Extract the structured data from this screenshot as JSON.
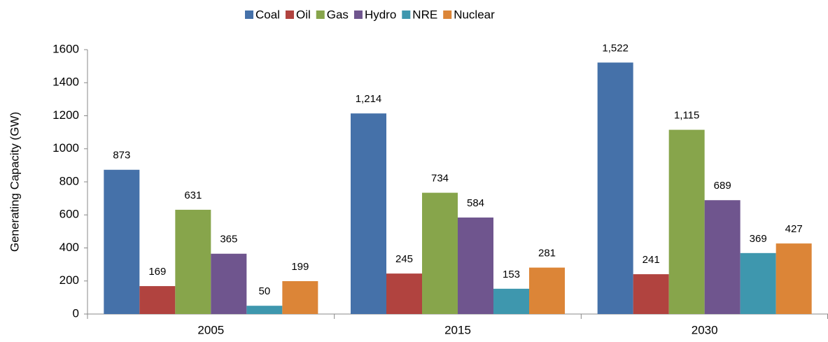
{
  "chart_data": {
    "type": "bar",
    "y_label": "Generating Capacity (GW)",
    "categories": [
      "2005",
      "2015",
      "2030"
    ],
    "series": [
      {
        "name": "Coal",
        "color": "#4571a9",
        "values": [
          873,
          1214,
          1522
        ],
        "value_labels": [
          "873",
          "1,214",
          "1,522"
        ]
      },
      {
        "name": "Oil",
        "color": "#b1433f",
        "values": [
          169,
          245,
          241
        ],
        "value_labels": [
          "169",
          "245",
          "241"
        ]
      },
      {
        "name": "Gas",
        "color": "#87a54b",
        "values": [
          631,
          734,
          1115
        ],
        "value_labels": [
          "631",
          "734",
          "1,115"
        ]
      },
      {
        "name": "Hydro",
        "color": "#6f558e",
        "values": [
          365,
          584,
          689
        ],
        "value_labels": [
          "365",
          "584",
          "689"
        ]
      },
      {
        "name": "NRE",
        "color": "#3e97ae",
        "values": [
          50,
          153,
          369
        ],
        "value_labels": [
          "50",
          "153",
          "369"
        ]
      },
      {
        "name": "Nuclear",
        "color": "#dc8537",
        "values": [
          199,
          281,
          427
        ],
        "value_labels": [
          "199",
          "281",
          "427"
        ]
      }
    ],
    "ylim": [
      0,
      1600
    ],
    "yticks": [
      0,
      200,
      400,
      600,
      800,
      1000,
      1200,
      1400,
      1600
    ],
    "grid": false,
    "legend": "top"
  }
}
